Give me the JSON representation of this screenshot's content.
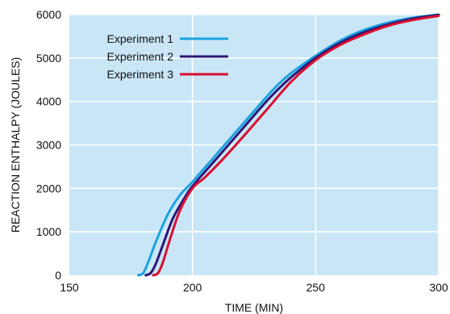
{
  "chart_data": {
    "type": "line",
    "title": "",
    "xlabel": "TIME (MIN)",
    "ylabel": "REACTION ENTHALPY (JOULES)",
    "xlim": [
      150,
      300
    ],
    "ylim": [
      0,
      6000
    ],
    "xticks": [
      150,
      200,
      250,
      300
    ],
    "yticks": [
      0,
      1000,
      2000,
      3000,
      4000,
      5000,
      6000
    ],
    "grid": true,
    "legend_position": "top-left",
    "background_color": "#c9e6f7",
    "grid_color": "#ffffff",
    "series": [
      {
        "name": "Experiment 1",
        "color": "#1aa3e0",
        "x": [
          178,
          180,
          182,
          185,
          190,
          195,
          200,
          210,
          220,
          230,
          235,
          240,
          250,
          260,
          270,
          280,
          290,
          300
        ],
        "y": [
          0,
          50,
          300,
          750,
          1400,
          1850,
          2150,
          2800,
          3450,
          4100,
          4400,
          4650,
          5050,
          5400,
          5650,
          5820,
          5930,
          6000
        ]
      },
      {
        "name": "Experiment 2",
        "color": "#2d1677",
        "x": [
          181,
          183,
          185,
          188,
          192,
          197,
          200,
          210,
          220,
          230,
          237,
          242,
          250,
          260,
          270,
          280,
          290,
          300
        ],
        "y": [
          0,
          50,
          250,
          700,
          1300,
          1800,
          2050,
          2700,
          3350,
          4000,
          4400,
          4650,
          5000,
          5350,
          5600,
          5780,
          5910,
          5990
        ]
      },
      {
        "name": "Experiment 3",
        "color": "#d8102f",
        "x": [
          184,
          186,
          188,
          191,
          195,
          200,
          205,
          212,
          220,
          230,
          240,
          250,
          260,
          270,
          280,
          290,
          300
        ],
        "y": [
          0,
          50,
          300,
          850,
          1500,
          2000,
          2250,
          2650,
          3150,
          3800,
          4450,
          4950,
          5300,
          5550,
          5750,
          5880,
          5970
        ]
      }
    ]
  }
}
